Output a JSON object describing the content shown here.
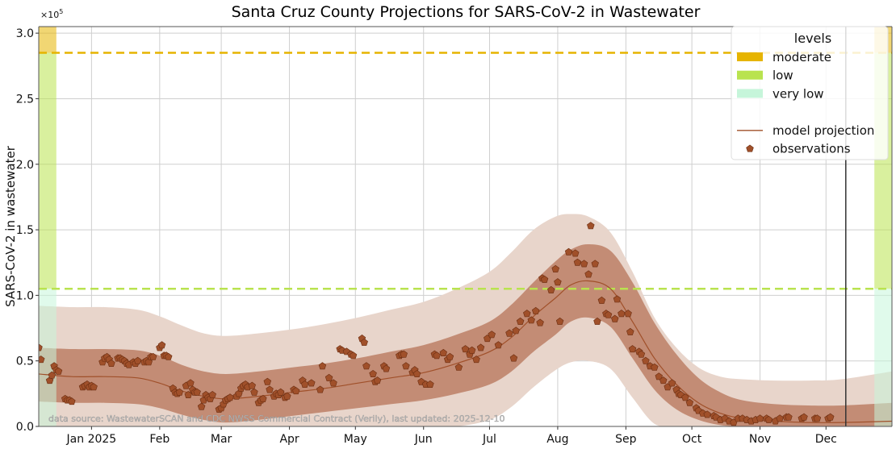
{
  "chart_data": {
    "type": "line",
    "title": "Santa Cruz County Projections for SARS-CoV-2 in Wastewater",
    "xlabel": "",
    "ylabel": "SARS-CoV-2 in wastewater",
    "y_multiplier_label": "×10",
    "y_multiplier_exp": "5",
    "y_unit_scale": 100000,
    "ylim": [
      0,
      3.05
    ],
    "x_start": "2024-12-08",
    "x_end": "2025-12-31",
    "x_ticks": [
      {
        "date": "2025-01-01",
        "label": "Jan 2025"
      },
      {
        "date": "2025-02-01",
        "label": "Feb"
      },
      {
        "date": "2025-03-01",
        "label": "Mar"
      },
      {
        "date": "2025-04-01",
        "label": "Apr"
      },
      {
        "date": "2025-05-01",
        "label": "May"
      },
      {
        "date": "2025-06-01",
        "label": "Jun"
      },
      {
        "date": "2025-07-01",
        "label": "Jul"
      },
      {
        "date": "2025-08-01",
        "label": "Aug"
      },
      {
        "date": "2025-09-01",
        "label": "Sep"
      },
      {
        "date": "2025-10-01",
        "label": "Oct"
      },
      {
        "date": "2025-11-01",
        "label": "Nov"
      },
      {
        "date": "2025-12-01",
        "label": "Dec"
      }
    ],
    "y_ticks": [
      {
        "value": 0.0,
        "label": "0.0"
      },
      {
        "value": 0.5,
        "label": "0.5"
      },
      {
        "value": 1.0,
        "label": "1.0"
      },
      {
        "value": 1.5,
        "label": "1.5"
      },
      {
        "value": 2.0,
        "label": "2.0"
      },
      {
        "value": 2.5,
        "label": "2.5"
      },
      {
        "value": 3.0,
        "label": "3.0"
      }
    ],
    "grid": true,
    "last_updated_date": "2025-12-10",
    "levels": [
      {
        "name": "moderate",
        "from": 2.85,
        "to": 3.05,
        "color": "#e6b400"
      },
      {
        "name": "low",
        "from": 1.05,
        "to": 2.85,
        "color": "#b9e34f"
      },
      {
        "name": "very low",
        "from": 0.0,
        "to": 1.05,
        "color": "#c6f5da"
      }
    ],
    "level_bands_dates": [
      {
        "from": "2024-12-08",
        "to": "2024-12-16"
      },
      {
        "from": "2025-12-23",
        "to": "2025-12-31"
      }
    ],
    "threshold_lines": [
      {
        "name": "moderate",
        "value": 2.85,
        "color": "#e6b400"
      },
      {
        "name": "low",
        "value": 1.05,
        "color": "#b9e34f"
      }
    ],
    "projection": {
      "name": "model projection",
      "color": "#a0502a",
      "days": [
        0,
        15,
        30,
        45,
        55,
        65,
        75,
        85,
        100,
        115,
        130,
        145,
        160,
        175,
        190,
        205,
        215,
        225,
        235,
        242,
        250,
        260,
        270,
        280,
        290,
        300,
        310,
        320,
        335,
        350,
        365,
        388
      ],
      "median": [
        0.4,
        0.38,
        0.38,
        0.37,
        0.33,
        0.27,
        0.23,
        0.21,
        0.23,
        0.26,
        0.29,
        0.33,
        0.37,
        0.41,
        0.48,
        0.57,
        0.68,
        0.84,
        0.98,
        1.08,
        1.11,
        1.05,
        0.8,
        0.52,
        0.32,
        0.18,
        0.1,
        0.06,
        0.04,
        0.03,
        0.03,
        0.04
      ],
      "inner_lo": [
        0.19,
        0.18,
        0.18,
        0.17,
        0.14,
        0.09,
        0.05,
        0.03,
        0.05,
        0.08,
        0.11,
        0.14,
        0.17,
        0.2,
        0.25,
        0.32,
        0.42,
        0.57,
        0.7,
        0.8,
        0.83,
        0.76,
        0.52,
        0.28,
        0.13,
        0.05,
        0.01,
        0.0,
        0.0,
        0.0,
        0.0,
        0.0
      ],
      "inner_hi": [
        0.6,
        0.59,
        0.59,
        0.58,
        0.54,
        0.47,
        0.42,
        0.4,
        0.42,
        0.45,
        0.48,
        0.52,
        0.57,
        0.62,
        0.7,
        0.8,
        0.93,
        1.1,
        1.26,
        1.35,
        1.39,
        1.34,
        1.1,
        0.79,
        0.55,
        0.37,
        0.26,
        0.2,
        0.17,
        0.16,
        0.16,
        0.18
      ],
      "outer_lo": [
        0.0,
        0.0,
        0.0,
        0.0,
        0.0,
        0.0,
        0.0,
        0.0,
        0.0,
        0.0,
        0.0,
        0.0,
        0.0,
        0.0,
        0.0,
        0.05,
        0.15,
        0.3,
        0.43,
        0.49,
        0.5,
        0.44,
        0.22,
        0.02,
        0.0,
        0.0,
        0.0,
        0.0,
        0.0,
        0.0,
        0.0,
        0.0
      ],
      "outer_hi": [
        0.92,
        0.91,
        0.91,
        0.89,
        0.84,
        0.77,
        0.71,
        0.69,
        0.71,
        0.74,
        0.78,
        0.83,
        0.89,
        0.95,
        1.05,
        1.18,
        1.33,
        1.5,
        1.6,
        1.62,
        1.6,
        1.48,
        1.18,
        0.83,
        0.6,
        0.45,
        0.38,
        0.36,
        0.35,
        0.35,
        0.36,
        0.42
      ]
    },
    "observations": {
      "name": "observations",
      "color": "#a0502a",
      "days": [
        0,
        1,
        5,
        6,
        7,
        8,
        9,
        12,
        13,
        14,
        15,
        20,
        21,
        22,
        23,
        24,
        25,
        29,
        30,
        31,
        32,
        33,
        36,
        37,
        38,
        39,
        40,
        41,
        43,
        44,
        45,
        48,
        49,
        50,
        51,
        52,
        55,
        56,
        57,
        58,
        59,
        61,
        62,
        63,
        64,
        67,
        68,
        69,
        70,
        71,
        72,
        74,
        75,
        76,
        77,
        78,
        79,
        82,
        83,
        84,
        85,
        86,
        87,
        90,
        91,
        92,
        93,
        94,
        95,
        97,
        98,
        100,
        101,
        102,
        104,
        105,
        107,
        108,
        109,
        110,
        112,
        113,
        116,
        117,
        120,
        121,
        124,
        128,
        129,
        132,
        134,
        137,
        138,
        140,
        142,
        143,
        147,
        148,
        149,
        152,
        153,
        154,
        157,
        158,
        164,
        165,
        166,
        167,
        170,
        171,
        172,
        174,
        176,
        178,
        180,
        181,
        184,
        186,
        187,
        191,
        194,
        196,
        197,
        199,
        201,
        204,
        206,
        209,
        214,
        216,
        217,
        219,
        222,
        224,
        226,
        228,
        229,
        230,
        233,
        235,
        236,
        237,
        241,
        244,
        245,
        248,
        250,
        251,
        253,
        254,
        256,
        258,
        259,
        262,
        263,
        265,
        268,
        269,
        270,
        273,
        274,
        276,
        278,
        280,
        282,
        284,
        286,
        288,
        290,
        291,
        292,
        294,
        296,
        299,
        300,
        302,
        304,
        307,
        308,
        310,
        312,
        314,
        316,
        318,
        320,
        322,
        324,
        326,
        328,
        331,
        332,
        335,
        337,
        340,
        341,
        347,
        348,
        353,
        354,
        359,
        360
      ],
      "values": [
        0.6,
        0.51,
        0.35,
        0.39,
        0.46,
        0.43,
        0.42,
        0.21,
        0.2,
        0.2,
        0.19,
        0.3,
        0.31,
        0.32,
        0.3,
        0.31,
        0.3,
        0.49,
        0.52,
        0.53,
        0.51,
        0.48,
        0.52,
        0.52,
        0.51,
        0.5,
        0.48,
        0.47,
        0.49,
        0.48,
        0.5,
        0.49,
        0.5,
        0.49,
        0.53,
        0.53,
        0.6,
        0.62,
        0.54,
        0.54,
        0.53,
        0.29,
        0.26,
        0.25,
        0.26,
        0.31,
        0.24,
        0.33,
        0.28,
        0.26,
        0.26,
        0.15,
        0.2,
        0.24,
        0.22,
        0.21,
        0.24,
        0.13,
        0.14,
        0.17,
        0.2,
        0.21,
        0.22,
        0.23,
        0.25,
        0.29,
        0.31,
        0.32,
        0.3,
        0.31,
        0.26,
        0.18,
        0.2,
        0.21,
        0.34,
        0.28,
        0.23,
        0.25,
        0.24,
        0.26,
        0.22,
        0.23,
        0.28,
        0.27,
        0.35,
        0.32,
        0.33,
        0.28,
        0.46,
        0.37,
        0.33,
        0.59,
        0.58,
        0.57,
        0.55,
        0.54,
        0.67,
        0.64,
        0.46,
        0.4,
        0.34,
        0.35,
        0.46,
        0.44,
        0.54,
        0.55,
        0.55,
        0.46,
        0.41,
        0.43,
        0.4,
        0.34,
        0.32,
        0.32,
        0.55,
        0.54,
        0.56,
        0.51,
        0.53,
        0.45,
        0.59,
        0.55,
        0.58,
        0.51,
        0.6,
        0.67,
        0.7,
        0.62,
        0.71,
        0.52,
        0.73,
        0.8,
        0.86,
        0.81,
        0.88,
        0.79,
        1.13,
        1.12,
        1.04,
        1.2,
        1.1,
        0.8,
        1.33,
        1.32,
        1.25,
        1.24,
        1.16,
        1.53,
        1.24,
        0.8,
        0.96,
        0.86,
        0.85,
        0.82,
        0.97,
        0.86,
        0.86,
        0.72,
        0.59,
        0.57,
        0.55,
        0.5,
        0.46,
        0.45,
        0.38,
        0.35,
        0.3,
        0.33,
        0.28,
        0.25,
        0.24,
        0.22,
        0.18,
        0.14,
        0.12,
        0.1,
        0.09,
        0.08,
        0.07,
        0.05,
        0.06,
        0.04,
        0.03,
        0.06,
        0.06,
        0.05,
        0.04,
        0.05,
        0.06,
        0.06,
        0.05,
        0.04,
        0.06,
        0.07,
        0.07,
        0.06,
        0.07,
        0.06,
        0.06,
        0.06,
        0.07,
        0.07,
        0.06,
        0.06,
        0.07,
        0.07
      ]
    },
    "legend": {
      "title": "levels",
      "position": "top-right",
      "entries": [
        {
          "label": "moderate",
          "kind": "patch",
          "color": "#e6b400"
        },
        {
          "label": "low",
          "kind": "patch",
          "color": "#b9e34f"
        },
        {
          "label": "very low",
          "kind": "patch",
          "color": "#c6f5da"
        },
        {
          "label": "",
          "kind": "spacer"
        },
        {
          "label": "model projection",
          "kind": "line",
          "color": "#a0502a"
        },
        {
          "label": "observations",
          "kind": "marker",
          "color": "#a0502a"
        }
      ]
    },
    "annotation": "data source: WastewaterSCAN and CDC NWSS Commercial Contract (Verily), last updated: 2025-12-10"
  }
}
